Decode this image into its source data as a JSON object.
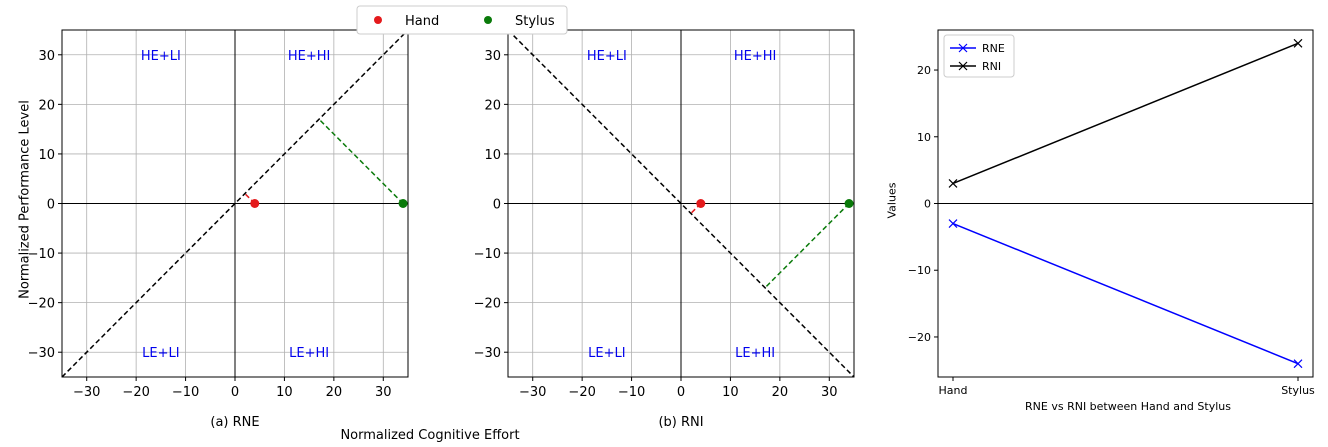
{
  "legend": {
    "entries": [
      {
        "label": "Hand",
        "color": "#e41a1c"
      },
      {
        "label": "Stylus",
        "color": "#0a7a0a"
      }
    ]
  },
  "shared_labels": {
    "ylabel": "Normalized Performance Level",
    "xlabel": "Normalized Cognitive Effort"
  },
  "chart_data": [
    {
      "type": "scatter",
      "caption": "(a) RNE",
      "xlim": [
        -35,
        35
      ],
      "ylim": [
        -35,
        35
      ],
      "ticks": [
        -30,
        -20,
        -10,
        0,
        10,
        20,
        30
      ],
      "grid": true,
      "diagonal": "y=x",
      "quadrant_labels": [
        {
          "text": "HE+LI",
          "x": -15,
          "y": 30
        },
        {
          "text": "HE+HI",
          "x": 15,
          "y": 30
        },
        {
          "text": "LE+LI",
          "x": -15,
          "y": -30
        },
        {
          "text": "LE+HI",
          "x": 15,
          "y": -30
        }
      ],
      "points": [
        {
          "series": "Hand",
          "x": 4,
          "y": 0
        },
        {
          "series": "Stylus",
          "x": 34,
          "y": 0
        }
      ],
      "projections": [
        {
          "series": "Hand",
          "from": [
            4,
            0
          ],
          "to": [
            2,
            2
          ]
        },
        {
          "series": "Stylus",
          "from": [
            34,
            0
          ],
          "to": [
            17,
            17
          ]
        }
      ]
    },
    {
      "type": "scatter",
      "caption": "(b) RNI",
      "xlim": [
        -35,
        35
      ],
      "ylim": [
        -35,
        35
      ],
      "ticks": [
        -30,
        -20,
        -10,
        0,
        10,
        20,
        30
      ],
      "grid": true,
      "diagonal": "y=-x",
      "quadrant_labels": [
        {
          "text": "HE+LI",
          "x": -15,
          "y": 30
        },
        {
          "text": "HE+HI",
          "x": 15,
          "y": 30
        },
        {
          "text": "LE+LI",
          "x": -15,
          "y": -30
        },
        {
          "text": "LE+HI",
          "x": 15,
          "y": -30
        }
      ],
      "points": [
        {
          "series": "Hand",
          "x": 4,
          "y": 0
        },
        {
          "series": "Stylus",
          "x": 34,
          "y": 0
        }
      ],
      "projections": [
        {
          "series": "Hand",
          "from": [
            4,
            0
          ],
          "to": [
            2,
            -2
          ]
        },
        {
          "series": "Stylus",
          "from": [
            34,
            0
          ],
          "to": [
            17,
            -17
          ]
        }
      ]
    },
    {
      "type": "line",
      "categories": [
        "Hand",
        "Stylus"
      ],
      "xlabel": "RNE vs RNI between Hand and Stylus",
      "ylabel": "Values",
      "ylim": [
        -26,
        26
      ],
      "yticks": [
        -20,
        -10,
        0,
        10,
        20
      ],
      "legend_position": "top-left",
      "series": [
        {
          "name": "RNE",
          "values": [
            -3,
            -24
          ],
          "color": "#0000ff"
        },
        {
          "name": "RNI",
          "values": [
            3,
            24
          ],
          "color": "#000000"
        }
      ]
    }
  ]
}
